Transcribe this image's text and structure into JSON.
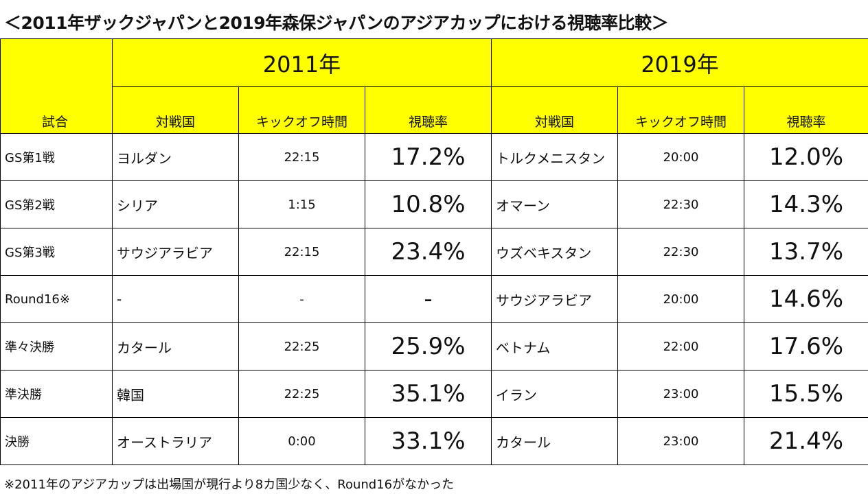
{
  "title": "＜2011年ザックジャパンと2019年森保ジャパンのアジアカップにおける視聴率比較＞",
  "header": {
    "match_label": "試合",
    "year_2011": "2011年",
    "year_2019": "2019年",
    "opponent_label": "対戦国",
    "kickoff_label": "キックオフ時間",
    "rating_label": "視聴率"
  },
  "rows": [
    {
      "match": "GS第1戦",
      "opp_2011": "ヨルダン",
      "time_2011": "22:15",
      "rate_2011": "17.2%",
      "opp_2019": "トルクメニスタン",
      "time_2019": "20:00",
      "rate_2019": "12.0%"
    },
    {
      "match": "GS第2戦",
      "opp_2011": "シリア",
      "time_2011": "1:15",
      "rate_2011": "10.8%",
      "opp_2019": "オマーン",
      "time_2019": "22:30",
      "rate_2019": "14.3%"
    },
    {
      "match": "GS第3戦",
      "opp_2011": "サウジアラビア",
      "time_2011": "22:15",
      "rate_2011": "23.4%",
      "opp_2019": "ウズベキスタン",
      "time_2019": "22:30",
      "rate_2019": "13.7%"
    },
    {
      "match": "Round16※",
      "opp_2011": "-",
      "time_2011": "-",
      "rate_2011": "-",
      "opp_2019": "サウジアラビア",
      "time_2019": "20:00",
      "rate_2019": "14.6%"
    },
    {
      "match": "準々決勝",
      "opp_2011": "カタール",
      "time_2011": "22:25",
      "rate_2011": "25.9%",
      "opp_2019": "ベトナム",
      "time_2019": "22:00",
      "rate_2019": "17.6%"
    },
    {
      "match": "準決勝",
      "opp_2011": "韓国",
      "time_2011": "22:25",
      "rate_2011": "35.1%",
      "opp_2019": "イラン",
      "time_2019": "23:00",
      "rate_2019": "15.5%"
    },
    {
      "match": "決勝",
      "opp_2011": "オーストラリア",
      "time_2011": "0:00",
      "rate_2011": "33.1%",
      "opp_2019": "カタール",
      "time_2019": "23:00",
      "rate_2019": "21.4%"
    }
  ],
  "note": "※2011年のアジアカップは出場国が現行より8カ国少なく、Round16がなかった",
  "colors": {
    "header_bg": "#ffff00",
    "border": "#000000"
  }
}
